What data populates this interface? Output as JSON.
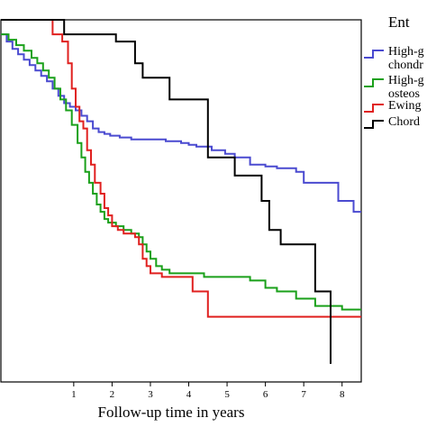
{
  "chart_data": {
    "type": "line",
    "title": "",
    "xlabel": "Follow-up time in years",
    "ylabel": "",
    "xlim": [
      -0.9,
      8.5
    ],
    "ylim": [
      0,
      1
    ],
    "x_ticks": [
      "1",
      "2",
      "3",
      "4",
      "5",
      "6",
      "7",
      "8"
    ],
    "legend": {
      "title": "Ent",
      "placement": "right",
      "entries": [
        {
          "lines": [
            "High-g",
            "chondr"
          ],
          "color": "#4a4ad0"
        },
        {
          "lines": [
            "High-g",
            "osteos"
          ],
          "color": "#1aa01a"
        },
        {
          "lines": [
            "Ewing"
          ],
          "color": "#e0201f"
        },
        {
          "lines": [
            "Chord"
          ],
          "color": "#000000"
        }
      ]
    },
    "series": [
      {
        "name": "High-g chondr",
        "color": "#4a4ad0",
        "points": [
          [
            -0.9,
            0.96
          ],
          [
            -0.75,
            0.94
          ],
          [
            -0.6,
            0.92
          ],
          [
            -0.45,
            0.905
          ],
          [
            -0.3,
            0.89
          ],
          [
            -0.15,
            0.875
          ],
          [
            0.0,
            0.86
          ],
          [
            0.15,
            0.845
          ],
          [
            0.3,
            0.83
          ],
          [
            0.45,
            0.81
          ],
          [
            0.6,
            0.79
          ],
          [
            0.75,
            0.77
          ],
          [
            0.9,
            0.76
          ],
          [
            1.05,
            0.75
          ],
          [
            1.2,
            0.735
          ],
          [
            1.35,
            0.72
          ],
          [
            1.5,
            0.7
          ],
          [
            1.65,
            0.69
          ],
          [
            1.8,
            0.685
          ],
          [
            1.95,
            0.68
          ],
          [
            2.2,
            0.675
          ],
          [
            2.5,
            0.67
          ],
          [
            2.9,
            0.67
          ],
          [
            3.4,
            0.665
          ],
          [
            3.8,
            0.66
          ],
          [
            4.0,
            0.655
          ],
          [
            4.2,
            0.65
          ],
          [
            4.6,
            0.64
          ],
          [
            4.95,
            0.63
          ],
          [
            5.2,
            0.62
          ],
          [
            5.6,
            0.6
          ],
          [
            6.0,
            0.595
          ],
          [
            6.3,
            0.59
          ],
          [
            6.8,
            0.58
          ],
          [
            7.0,
            0.55
          ],
          [
            7.4,
            0.55
          ],
          [
            7.9,
            0.5
          ],
          [
            8.3,
            0.47
          ],
          [
            8.5,
            0.47
          ]
        ]
      },
      {
        "name": "High-g osteos",
        "color": "#1aa01a",
        "points": [
          [
            -0.9,
            0.96
          ],
          [
            -0.7,
            0.945
          ],
          [
            -0.5,
            0.93
          ],
          [
            -0.3,
            0.915
          ],
          [
            -0.1,
            0.895
          ],
          [
            0.05,
            0.88
          ],
          [
            0.2,
            0.86
          ],
          [
            0.35,
            0.84
          ],
          [
            0.5,
            0.81
          ],
          [
            0.65,
            0.78
          ],
          [
            0.8,
            0.75
          ],
          [
            0.95,
            0.71
          ],
          [
            1.1,
            0.66
          ],
          [
            1.2,
            0.62
          ],
          [
            1.3,
            0.58
          ],
          [
            1.4,
            0.55
          ],
          [
            1.5,
            0.52
          ],
          [
            1.6,
            0.49
          ],
          [
            1.7,
            0.47
          ],
          [
            1.8,
            0.45
          ],
          [
            1.9,
            0.44
          ],
          [
            2.1,
            0.43
          ],
          [
            2.3,
            0.42
          ],
          [
            2.5,
            0.41
          ],
          [
            2.7,
            0.4
          ],
          [
            2.8,
            0.38
          ],
          [
            2.9,
            0.36
          ],
          [
            3.0,
            0.34
          ],
          [
            3.15,
            0.32
          ],
          [
            3.3,
            0.31
          ],
          [
            3.5,
            0.3
          ],
          [
            3.8,
            0.3
          ],
          [
            4.0,
            0.3
          ],
          [
            4.4,
            0.29
          ],
          [
            5.0,
            0.29
          ],
          [
            5.6,
            0.28
          ],
          [
            6.0,
            0.26
          ],
          [
            6.3,
            0.25
          ],
          [
            6.8,
            0.23
          ],
          [
            7.3,
            0.21
          ],
          [
            8.0,
            0.2
          ],
          [
            8.5,
            0.2
          ]
        ]
      },
      {
        "name": "Ewing",
        "color": "#e0201f",
        "points": [
          [
            -0.9,
            1.0
          ],
          [
            0.3,
            1.0
          ],
          [
            0.45,
            0.96
          ],
          [
            0.7,
            0.94
          ],
          [
            0.85,
            0.88
          ],
          [
            0.95,
            0.81
          ],
          [
            1.05,
            0.76
          ],
          [
            1.15,
            0.72
          ],
          [
            1.25,
            0.7
          ],
          [
            1.35,
            0.64
          ],
          [
            1.45,
            0.6
          ],
          [
            1.55,
            0.55
          ],
          [
            1.7,
            0.52
          ],
          [
            1.8,
            0.48
          ],
          [
            1.9,
            0.46
          ],
          [
            2.0,
            0.43
          ],
          [
            2.15,
            0.42
          ],
          [
            2.3,
            0.41
          ],
          [
            2.5,
            0.41
          ],
          [
            2.6,
            0.4
          ],
          [
            2.7,
            0.38
          ],
          [
            2.8,
            0.34
          ],
          [
            2.9,
            0.32
          ],
          [
            3.0,
            0.3
          ],
          [
            3.3,
            0.29
          ],
          [
            3.7,
            0.29
          ],
          [
            4.1,
            0.25
          ],
          [
            4.5,
            0.18
          ],
          [
            8.5,
            0.18
          ]
        ]
      },
      {
        "name": "Chord",
        "color": "#000000",
        "points": [
          [
            -0.9,
            1.0
          ],
          [
            0.6,
            1.0
          ],
          [
            0.75,
            0.96
          ],
          [
            1.9,
            0.96
          ],
          [
            2.1,
            0.94
          ],
          [
            2.5,
            0.94
          ],
          [
            2.6,
            0.88
          ],
          [
            2.8,
            0.84
          ],
          [
            3.3,
            0.84
          ],
          [
            3.5,
            0.78
          ],
          [
            4.3,
            0.78
          ],
          [
            4.5,
            0.62
          ],
          [
            4.9,
            0.62
          ],
          [
            5.2,
            0.57
          ],
          [
            5.5,
            0.57
          ],
          [
            5.9,
            0.5
          ],
          [
            6.1,
            0.42
          ],
          [
            6.4,
            0.38
          ],
          [
            7.0,
            0.38
          ],
          [
            7.3,
            0.25
          ],
          [
            7.7,
            0.05
          ]
        ]
      }
    ]
  }
}
